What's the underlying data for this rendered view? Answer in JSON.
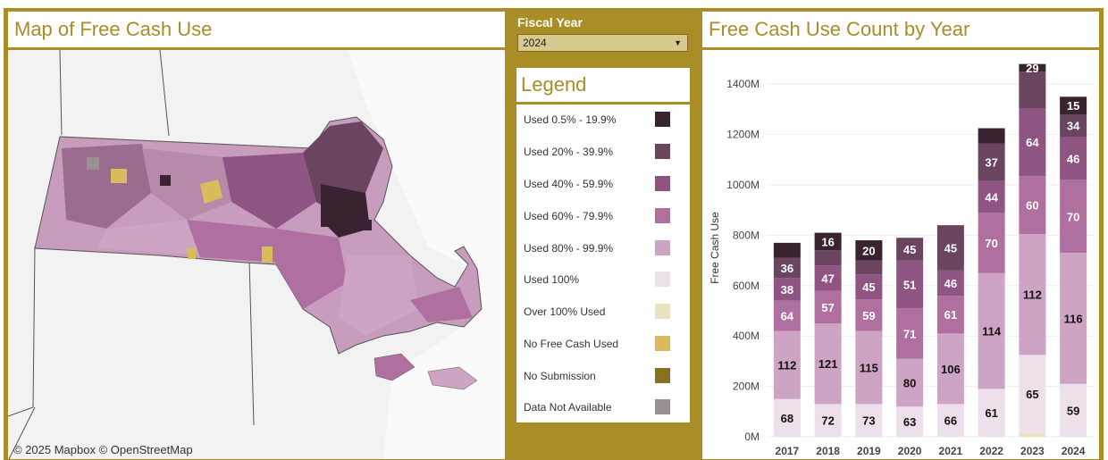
{
  "map_panel": {
    "title": "Map of Free Cash Use",
    "attribution": "© 2025 Mapbox  © OpenStreetMap"
  },
  "filter": {
    "label": "Fiscal Year",
    "selected": "2024"
  },
  "legend": {
    "title": "Legend",
    "items": [
      {
        "label": "Used 0.5% - 19.9%",
        "color": "#3a2330"
      },
      {
        "label": "Used 20% - 39.9%",
        "color": "#6a4560"
      },
      {
        "label": "Used 40% - 59.9%",
        "color": "#8f5582"
      },
      {
        "label": "Used 60% - 79.9%",
        "color": "#b0709f"
      },
      {
        "label": "Used 80% - 99.9%",
        "color": "#cda4c3"
      },
      {
        "label": "Used 100%",
        "color": "#eee0ea"
      },
      {
        "label": "Over 100% Used",
        "color": "#ebe1bd"
      },
      {
        "label": "No Free Cash Used",
        "color": "#d9bd5c"
      },
      {
        "label": "No Submission",
        "color": "#8a6f1e"
      },
      {
        "label": "Data Not Available",
        "color": "#999191"
      }
    ]
  },
  "chart_panel": {
    "title": "Free Cash Use Count by Year"
  },
  "chart_data": {
    "type": "bar",
    "stacked": true,
    "categories": [
      "2017",
      "2018",
      "2019",
      "2020",
      "2021",
      "2022",
      "2023",
      "2024"
    ],
    "ylabel": "Free Cash Use",
    "ylim": [
      0,
      1500
    ],
    "yticks": [
      "0M",
      "200M",
      "400M",
      "600M",
      "800M",
      "1000M",
      "1200M",
      "1400M"
    ],
    "series": [
      {
        "name": "Over 100% Used",
        "color": "#ebe1bd",
        "values": [
          0,
          0,
          0,
          0,
          0,
          0,
          15,
          0
        ]
      },
      {
        "name": "Used 100%",
        "color": "#eee0ea",
        "values": [
          150,
          130,
          130,
          120,
          130,
          190,
          310,
          210
        ],
        "labels": [
          "68",
          "72",
          "73",
          "63",
          "66",
          "61",
          "65",
          "59"
        ]
      },
      {
        "name": "Used 80% - 99.9%",
        "color": "#cda4c3",
        "values": [
          270,
          320,
          290,
          190,
          280,
          460,
          480,
          520
        ],
        "labels": [
          "112",
          "121",
          "115",
          "80",
          "106",
          "114",
          "112",
          "116"
        ]
      },
      {
        "name": "Used 60% - 79.9%",
        "color": "#b0709f",
        "values": [
          120,
          130,
          125,
          200,
          150,
          240,
          230,
          290
        ],
        "labels": [
          "64",
          "57",
          "59",
          "71",
          "61",
          "70",
          "60",
          "70"
        ]
      },
      {
        "name": "Used 40% - 59.9%",
        "color": "#8f5582",
        "values": [
          90,
          100,
          100,
          190,
          100,
          125,
          270,
          170
        ],
        "labels": [
          "38",
          "47",
          "45",
          "51",
          "46",
          "44",
          "64",
          "46"
        ]
      },
      {
        "name": "Used 20% - 39.9%",
        "color": "#6a4560",
        "values": [
          80,
          60,
          55,
          90,
          180,
          150,
          145,
          90
        ],
        "labels": [
          "36",
          "",
          "",
          "45",
          "45",
          "37",
          "",
          "34"
        ]
      },
      {
        "name": "Used 0.5% - 19.9%",
        "color": "#3a2330",
        "values": [
          60,
          70,
          80,
          0,
          0,
          60,
          30,
          70
        ],
        "labels": [
          "",
          "16",
          "20",
          "",
          "",
          "",
          "29",
          "15"
        ]
      }
    ]
  }
}
